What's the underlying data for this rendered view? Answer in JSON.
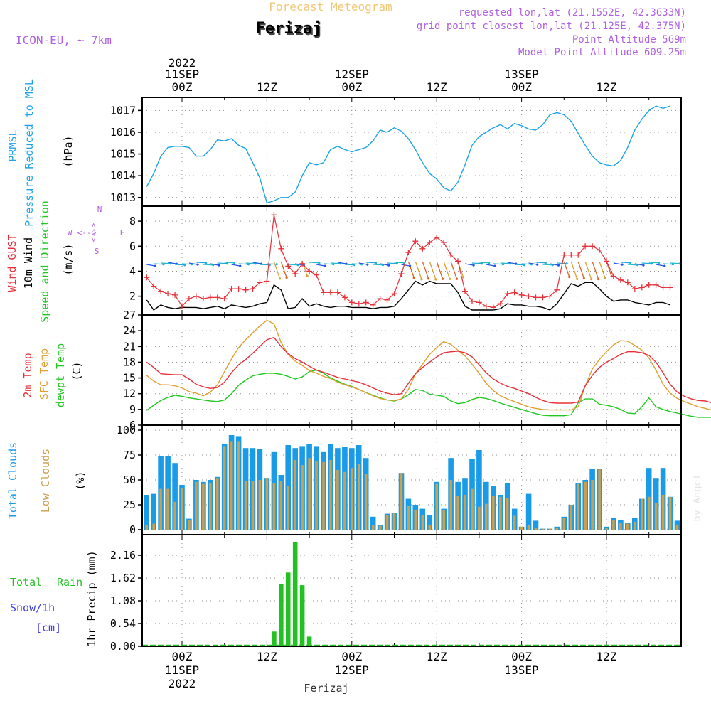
{
  "header": {
    "subtitle": "Forecast Meteogram",
    "location": "Ferizaj",
    "model": "ICON-EU, ~ 7km",
    "requested": "requested lon,lat (21.1552E, 42.3633N)",
    "gridpoint": "grid point closest lon,lat (21.125E, 42.375N)",
    "point_alt": "Point Altitude 569m",
    "model_alt": "Model Point Altitude 609.25m",
    "credit": "by Angel",
    "footer": "Ferizaj"
  },
  "colors": {
    "pressure": "#1ea3e6",
    "gust": "#e8303a",
    "wind": "#000000",
    "temp": "#e8303a",
    "sfc": "#e0a030",
    "dew": "#22c822",
    "cloud_total": "#1a9be8",
    "cloud_low": "#c8a050",
    "rain": "#22c022",
    "snow": "#4040e0",
    "header_purple": "#b060e0",
    "header_orange": "#f0c878"
  },
  "time_axis": {
    "top_year": "2022",
    "top_labels": [
      {
        "t": 0,
        "lines": [
          "11SEP",
          "00Z"
        ]
      },
      {
        "t": 12,
        "lines": [
          "12Z"
        ]
      },
      {
        "t": 24,
        "lines": [
          "12SEP",
          "00Z"
        ]
      },
      {
        "t": 36,
        "lines": [
          "12Z"
        ]
      },
      {
        "t": 48,
        "lines": [
          "13SEP",
          "00Z"
        ]
      },
      {
        "t": 60,
        "lines": [
          "12Z"
        ]
      }
    ],
    "bottom_labels": [
      {
        "t": 0,
        "lines": [
          "00Z",
          "11SEP",
          "2022"
        ]
      },
      {
        "t": 12,
        "lines": [
          "12Z"
        ]
      },
      {
        "t": 24,
        "lines": [
          "00Z",
          "12SEP"
        ]
      },
      {
        "t": 36,
        "lines": [
          "12Z"
        ]
      },
      {
        "t": 48,
        "lines": [
          "00Z",
          "13SEP"
        ]
      },
      {
        "t": 60,
        "lines": [
          "12Z"
        ]
      }
    ]
  },
  "panels": {
    "pressure": {
      "labels": [
        "PRMSL",
        "Pressure Reduced to MSL"
      ],
      "unit": "(hPa)"
    },
    "wind": {
      "labels": [
        "Wind GUST",
        "10m Wind",
        "Speed and Direction"
      ],
      "unit": "(m/s)",
      "compass": {
        "n": "N",
        "s": "S",
        "w": "W",
        "e": "E"
      }
    },
    "temp": {
      "labels": [
        "2m Temp",
        "SFC Temp",
        "dewpt Temp"
      ],
      "unit": "(C)"
    },
    "cloud": {
      "labels": [
        "Total Clouds",
        "Low Clouds"
      ],
      "unit": "(%)"
    },
    "rain": {
      "labels": [
        "Total",
        "Rain",
        "Snow/1h",
        "[cm]"
      ],
      "unit": "1hr Precip (mm)"
    }
  },
  "chart_data": [
    {
      "type": "line",
      "title": "PRMSL Pressure Reduced to MSL",
      "ylabel": "hPa",
      "ylim": [
        1012.6,
        1017.6
      ],
      "yticks": [
        1013,
        1014,
        1015,
        1016,
        1017
      ],
      "series": [
        {
          "name": "PRMSL",
          "x0": -5,
          "dx": 1,
          "values": [
            1013.5,
            1014.1,
            1014.9,
            1015.3,
            1015.35,
            1015.35,
            1015.3,
            1014.9,
            1014.9,
            1015.2,
            1015.65,
            1015.6,
            1015.7,
            1015.4,
            1015.25,
            1014.6,
            1013.9,
            1012.75,
            1012.85,
            1013.0,
            1013.0,
            1013.25,
            1014.0,
            1014.6,
            1014.5,
            1014.6,
            1015.2,
            1015.35,
            1015.2,
            1015.1,
            1015.2,
            1015.3,
            1015.6,
            1016.1,
            1016.0,
            1016.2,
            1016.05,
            1015.7,
            1015.2,
            1014.6,
            1014.1,
            1013.85,
            1013.45,
            1013.3,
            1013.7,
            1014.5,
            1015.4,
            1015.8,
            1016.0,
            1016.2,
            1016.35,
            1016.15,
            1016.4,
            1016.3,
            1016.15,
            1016.1,
            1016.35,
            1016.8,
            1016.9,
            1016.8,
            1016.5,
            1015.95,
            1015.4,
            1014.9,
            1014.6,
            1014.5,
            1014.45,
            1014.7,
            1015.3,
            1016.1,
            1016.6,
            1017.0,
            1017.2,
            1017.1,
            1017.2
          ]
        }
      ]
    },
    {
      "type": "line",
      "title": "Wind GUST / 10m Wind Speed and Direction",
      "ylabel": "m/s",
      "ylim": [
        0.5,
        9.2
      ],
      "yticks": [
        2,
        4,
        6,
        8
      ],
      "series": [
        {
          "name": "Wind GUST",
          "x0": -5,
          "dx": 1,
          "values": [
            3.5,
            2.8,
            2.4,
            2.2,
            2.1,
            1.2,
            1.8,
            2.0,
            1.8,
            1.9,
            1.9,
            1.8,
            2.6,
            2.6,
            2.5,
            2.6,
            3.1,
            3.2,
            8.5,
            5.8,
            4.4,
            3.8,
            4.6,
            4.0,
            3.7,
            2.3,
            2.3,
            2.3,
            1.9,
            1.5,
            1.4,
            1.5,
            1.3,
            1.8,
            1.7,
            2.2,
            3.8,
            5.5,
            6.4,
            5.8,
            6.3,
            6.7,
            6.3,
            5.3,
            4.8,
            2.4,
            1.6,
            1.5,
            1.2,
            1.1,
            1.4,
            2.2,
            2.3,
            2.1,
            2.0,
            1.9,
            1.9,
            2.0,
            2.5,
            5.3,
            5.3,
            5.3,
            6.0,
            6.0,
            5.7,
            4.8,
            3.6,
            3.3,
            3.1,
            2.6,
            2.7,
            2.9,
            2.9,
            2.7,
            2.7
          ]
        },
        {
          "name": "10m Wind",
          "x0": -5,
          "dx": 1,
          "values": [
            1.7,
            0.9,
            1.3,
            1.1,
            1.0,
            1.1,
            1.1,
            1.1,
            1.0,
            1.1,
            1.2,
            1.0,
            1.3,
            1.2,
            1.1,
            1.2,
            1.4,
            1.5,
            2.9,
            2.5,
            1.0,
            1.1,
            1.8,
            1.2,
            1.4,
            1.2,
            1.1,
            1.2,
            1.2,
            1.1,
            1.1,
            1.1,
            1.0,
            1.1,
            1.1,
            1.2,
            1.8,
            2.5,
            3.2,
            2.9,
            3.2,
            3.0,
            3.0,
            3.0,
            2.3,
            1.2,
            0.9,
            0.9,
            0.9,
            0.9,
            1.0,
            1.4,
            1.3,
            1.3,
            1.2,
            1.2,
            1.1,
            0.9,
            1.4,
            2.2,
            3.0,
            2.8,
            3.1,
            3.1,
            2.6,
            2.0,
            1.6,
            1.7,
            1.7,
            1.5,
            1.4,
            1.3,
            1.5,
            1.5,
            1.3
          ]
        }
      ]
    },
    {
      "type": "line",
      "title": "2m Temp / SFC Temp / dewpt Temp",
      "ylabel": "C",
      "ylim": [
        6,
        27
      ],
      "yticks": [
        6,
        9,
        12,
        15,
        18,
        21,
        24,
        27
      ],
      "series": [
        {
          "name": "2m Temp",
          "x0": -5,
          "dx": 1,
          "values": [
            18.0,
            17.0,
            15.8,
            15.7,
            15.6,
            15.6,
            14.8,
            13.8,
            13.3,
            13.0,
            13.2,
            14.2,
            16.0,
            17.5,
            18.5,
            19.7,
            21.0,
            22.3,
            22.7,
            21.0,
            19.6,
            18.7,
            18.0,
            17.2,
            16.5,
            16.1,
            15.6,
            15.1,
            14.8,
            14.5,
            14.2,
            13.7,
            13.1,
            12.5,
            12.1,
            11.8,
            12.0,
            14.0,
            15.8,
            17.0,
            18.0,
            19.0,
            19.8,
            20.0,
            20.1,
            19.8,
            19.0,
            17.5,
            16.0,
            14.8,
            14.0,
            13.4,
            13.0,
            12.5,
            12.0,
            11.3,
            10.7,
            10.3,
            10.2,
            10.2,
            10.2,
            10.4,
            13.5,
            15.5,
            17.0,
            18.0,
            18.7,
            19.5,
            20.0,
            20.0,
            19.8,
            19.3,
            18.0,
            16.0,
            13.8,
            12.3,
            11.5,
            11.0,
            10.7,
            10.6,
            10.2
          ]
        },
        {
          "name": "SFC Temp",
          "x0": -5,
          "dx": 1,
          "values": [
            15.5,
            14.4,
            13.7,
            13.7,
            13.5,
            13.1,
            12.4,
            12.1,
            11.6,
            12.3,
            13.7,
            16.2,
            18.6,
            20.8,
            22.3,
            23.6,
            24.9,
            26.0,
            25.3,
            21.8,
            19.5,
            18.2,
            17.4,
            16.4,
            15.9,
            15.3,
            14.9,
            14.2,
            13.7,
            13.3,
            12.8,
            12.2,
            11.6,
            11.1,
            10.8,
            10.7,
            11.0,
            12.8,
            15.8,
            17.6,
            19.5,
            20.8,
            21.9,
            21.4,
            20.3,
            19.2,
            17.6,
            15.9,
            14.0,
            12.6,
            11.6,
            11.0,
            10.5,
            10.0,
            9.5,
            9.2,
            9.0,
            8.9,
            8.9,
            8.9,
            8.9,
            9.5,
            13.5,
            16.7,
            18.5,
            20.0,
            21.3,
            22.1,
            22.0,
            21.2,
            20.3,
            18.8,
            16.5,
            13.8,
            12.1,
            11.1,
            10.5,
            10.0,
            9.5,
            9.2,
            8.8
          ]
        },
        {
          "name": "dewpt Temp",
          "x0": -5,
          "dx": 1,
          "values": [
            8.8,
            9.8,
            10.7,
            11.3,
            11.7,
            11.5,
            11.2,
            11.0,
            10.8,
            10.6,
            10.5,
            10.8,
            12.0,
            13.6,
            14.6,
            15.4,
            15.7,
            15.9,
            15.9,
            15.7,
            15.3,
            14.8,
            15.2,
            16.2,
            16.5,
            15.9,
            15.0,
            14.4,
            13.8,
            13.4,
            12.8,
            12.2,
            11.7,
            11.2,
            10.8,
            10.6,
            11.0,
            11.8,
            12.8,
            12.6,
            11.9,
            11.7,
            11.5,
            10.6,
            10.1,
            10.3,
            10.9,
            11.3,
            11.1,
            10.7,
            10.2,
            9.8,
            9.4,
            9.0,
            8.6,
            8.2,
            7.9,
            7.8,
            7.8,
            7.8,
            8.0,
            10.3,
            11.0,
            11.0,
            10.0,
            9.8,
            9.5,
            9.0,
            8.3,
            8.2,
            9.5,
            11.2,
            9.5,
            9.0,
            8.6,
            8.3,
            8.0,
            7.7,
            7.5,
            7.5,
            7.5
          ]
        }
      ]
    },
    {
      "type": "bar",
      "title": "Total Clouds / Low Clouds",
      "ylabel": "%",
      "ylim": [
        -5,
        105
      ],
      "yticks": [
        0,
        25,
        50,
        75,
        100
      ],
      "series": [
        {
          "name": "Total Clouds",
          "x0": -5,
          "dx": 1,
          "values": [
            35,
            36,
            74,
            74,
            67,
            45,
            11,
            50,
            48,
            50,
            53,
            86,
            95,
            94,
            82,
            82,
            81,
            52,
            78,
            55,
            85,
            82,
            84,
            86,
            84,
            78,
            86,
            82,
            83,
            82,
            85,
            72,
            13,
            5,
            16,
            17,
            57,
            31,
            25,
            21,
            15,
            48,
            21,
            72,
            48,
            52,
            71,
            80,
            48,
            44,
            35,
            47,
            21,
            3,
            36,
            9,
            1,
            1,
            3,
            13,
            25,
            47,
            50,
            61,
            61,
            3,
            12,
            10,
            7,
            12,
            31,
            62,
            52,
            62,
            33,
            9,
            1,
            1,
            1,
            1,
            1
          ]
        },
        {
          "name": "Low Clouds",
          "x0": -5,
          "dx": 1,
          "values": [
            5,
            6,
            41,
            41,
            28,
            42,
            10,
            48,
            46,
            47,
            52,
            84,
            89,
            89,
            49,
            49,
            50,
            52,
            47,
            49,
            44,
            70,
            65,
            72,
            69,
            68,
            70,
            60,
            58,
            62,
            66,
            56,
            5,
            4,
            15,
            17,
            57,
            24,
            20,
            15,
            5,
            46,
            20,
            50,
            34,
            35,
            41,
            23,
            26,
            34,
            33,
            32,
            14,
            3,
            5,
            2,
            1,
            1,
            2,
            12,
            25,
            46,
            48,
            50,
            61,
            2,
            10,
            7,
            6,
            8,
            31,
            33,
            27,
            35,
            33,
            5,
            1,
            1,
            1,
            1,
            1
          ]
        }
      ]
    },
    {
      "type": "bar",
      "title": "1hr Precip (mm)",
      "ylabel": "1hr Precip (mm)",
      "ylim": [
        0,
        2.65
      ],
      "yticks": [
        0,
        0.54,
        1.08,
        1.62,
        2.16
      ],
      "series": [
        {
          "name": "Total Rain",
          "x": [
            13,
            14,
            15,
            16,
            17,
            18
          ],
          "values": [
            0.35,
            1.48,
            1.75,
            2.48,
            1.45,
            0.23
          ]
        }
      ]
    }
  ]
}
